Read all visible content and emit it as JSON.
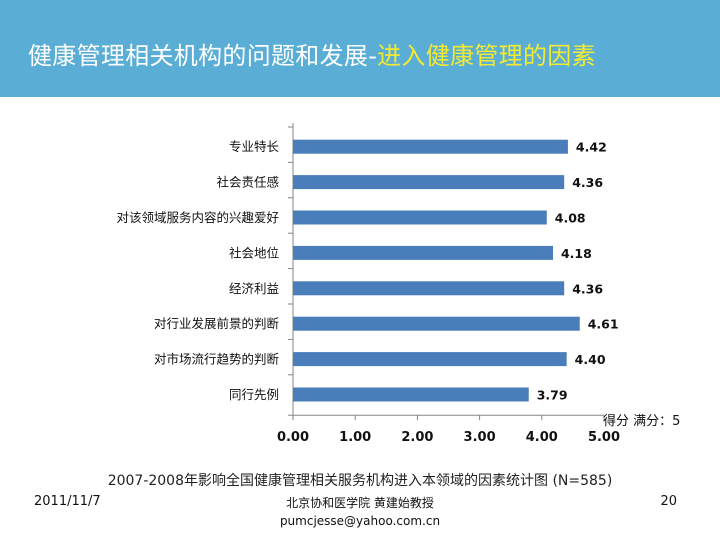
{
  "header": {
    "title_main": "健康管理相关机构的问题和发展",
    "title_sep": "-",
    "title_sub": "进入健康管理的因素"
  },
  "chart_data": {
    "type": "bar",
    "orientation": "horizontal",
    "categories": [
      "专业特长",
      "社会责任感",
      "对该领域服务内容的兴趣爱好",
      "社会地位",
      "经济利益",
      "对行业发展前景的判断",
      "对市场流行趋势的判断",
      "同行先例"
    ],
    "values": [
      4.42,
      4.36,
      4.08,
      4.18,
      4.36,
      4.61,
      4.4,
      3.79
    ],
    "value_labels": [
      "4.42",
      "4.36",
      "4.08",
      "4.18",
      "4.36",
      "4.61",
      "4.40",
      "3.79"
    ],
    "xlim": [
      0,
      5
    ],
    "ticks": [
      "0.00",
      "1.00",
      "2.00",
      "3.00",
      "4.00",
      "5.00"
    ],
    "bar_color": "#4a7ebb",
    "grid": false,
    "note": "得分 满分：5"
  },
  "caption": "2007-2008年影响全国健康管理相关服务机构进入本领域的因素统计图 (N=585)",
  "footer": {
    "date": "2011/11/7",
    "author": "北京协和医学院 黄建始教授",
    "email": "pumcjesse@yahoo.com.cn",
    "page": "20"
  },
  "colors": {
    "header_bg": "#5aaed6",
    "title_sub": "#f4ea2f"
  }
}
